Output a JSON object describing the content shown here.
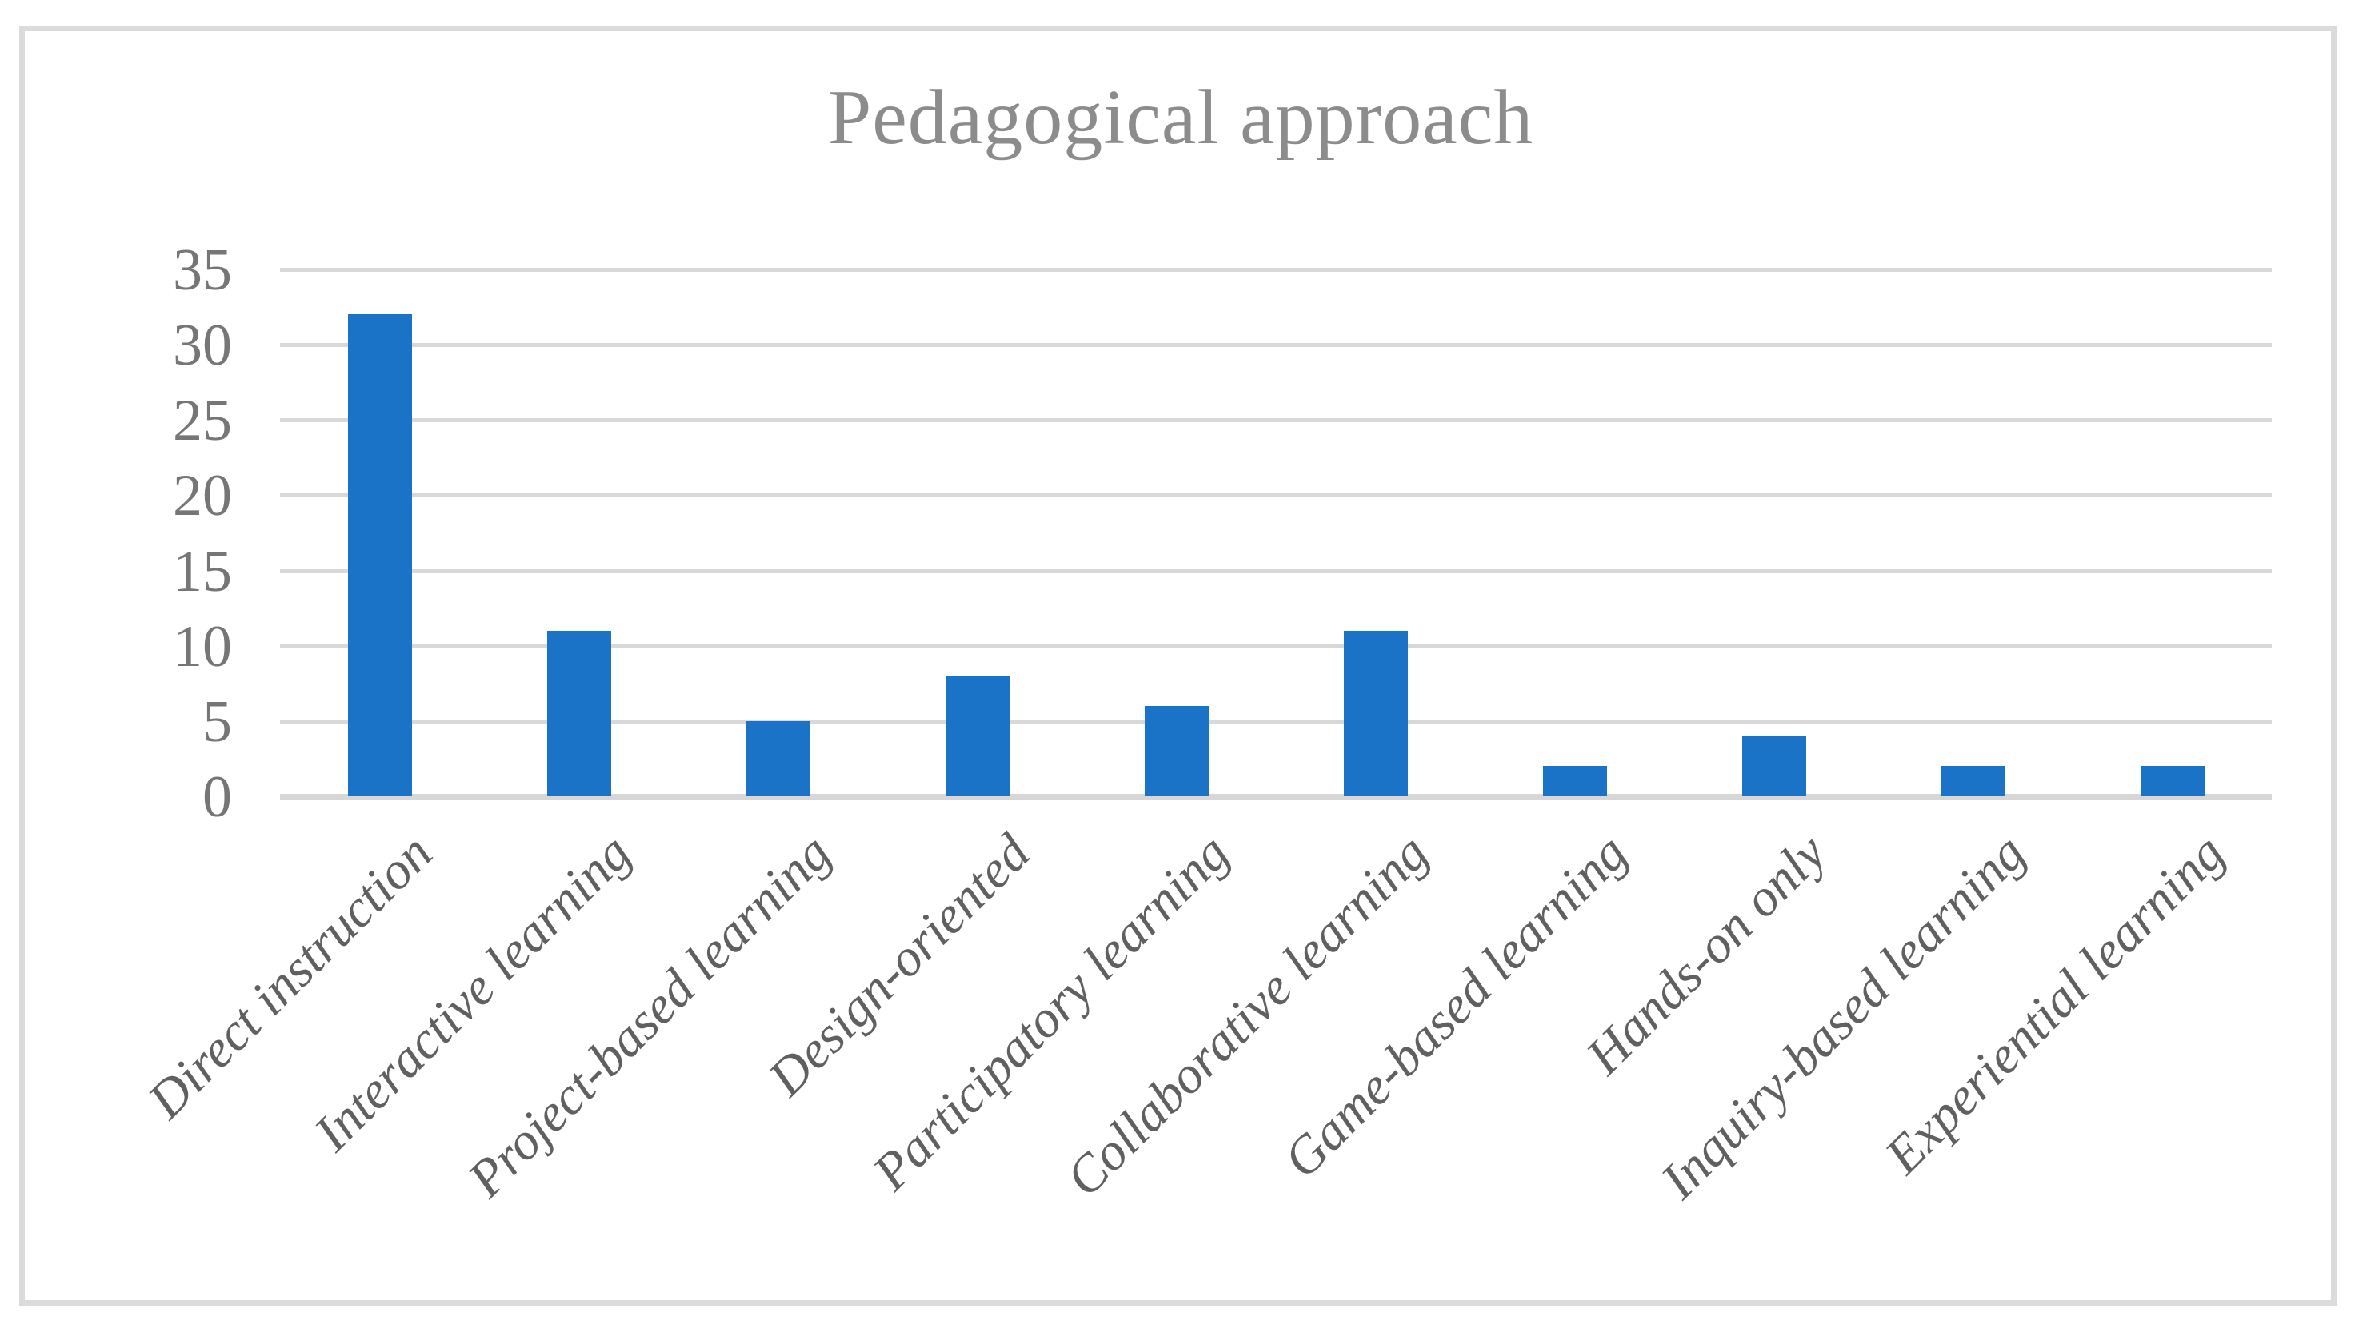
{
  "chart_data": {
    "type": "bar",
    "title": "Pedagogical approach",
    "categories": [
      "Direct instruction",
      "Interactive learning",
      "Project-based learning",
      "Design-oriented",
      "Participatory learning",
      "Collaborative learning",
      "Game-based learning",
      "Hands-on only",
      "Inquiry-based learning",
      "Experiential learning"
    ],
    "values": [
      32,
      11,
      5,
      8,
      6,
      11,
      2,
      4,
      2,
      2
    ],
    "xlabel": "",
    "ylabel": "",
    "ylim": [
      0,
      35
    ],
    "yticks": [
      0,
      5,
      10,
      15,
      20,
      25,
      30,
      35
    ],
    "grid": true,
    "legend_position": "none",
    "bar_color": "#1B73C7",
    "gridline_color": "#D9D9D9",
    "axis_line_color": "#D7D7D7",
    "border_color": "#DBDBDB",
    "title_color": "#8C8C8C",
    "ytick_color": "#767676",
    "xtick_color": "#606060"
  }
}
